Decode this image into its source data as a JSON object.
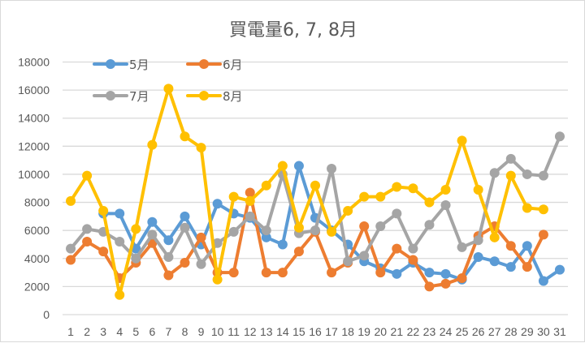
{
  "chart_data": {
    "type": "line",
    "title": "買電量6, 7, 8月",
    "xlabel": "",
    "ylabel": "",
    "ylim": [
      0,
      18000
    ],
    "yticks": [
      0,
      2000,
      4000,
      6000,
      8000,
      10000,
      12000,
      14000,
      16000,
      18000
    ],
    "grid": true,
    "legend_position": "top-left (inside plot)",
    "categories": [
      "1",
      "2",
      "3",
      "4",
      "5",
      "6",
      "7",
      "8",
      "9",
      "10",
      "11",
      "12",
      "13",
      "14",
      "15",
      "16",
      "17",
      "18",
      "19",
      "20",
      "21",
      "22",
      "23",
      "24",
      "25",
      "26",
      "27",
      "28",
      "29",
      "30",
      "31"
    ],
    "series": [
      {
        "name": "5月",
        "color": "#5B9BD5",
        "values": [
          null,
          null,
          7200,
          7200,
          4700,
          6600,
          5300,
          7000,
          5000,
          7900,
          7200,
          6900,
          5500,
          5000,
          10600,
          6900,
          6000,
          5000,
          3800,
          3300,
          2900,
          3700,
          3000,
          2900,
          2500,
          4100,
          3800,
          3400,
          4900,
          2400,
          3200
        ]
      },
      {
        "name": "6月",
        "color": "#ED7D31",
        "values": [
          3900,
          5200,
          4500,
          2600,
          3700,
          5100,
          2800,
          3700,
          5500,
          3000,
          3000,
          8700,
          3000,
          3000,
          4500,
          5900,
          3000,
          3700,
          6300,
          3000,
          4700,
          3900,
          2000,
          2200,
          2600,
          5600,
          6300,
          4900,
          3400,
          5700,
          null
        ]
      },
      {
        "name": "7月",
        "color": "#A5A5A5",
        "values": [
          4700,
          6100,
          5900,
          5200,
          4000,
          5700,
          4100,
          6200,
          3600,
          5100,
          5900,
          7000,
          6000,
          10000,
          5800,
          6000,
          10400,
          3800,
          4200,
          6300,
          7200,
          4700,
          6400,
          7800,
          4800,
          5300,
          10100,
          11100,
          10000,
          9900,
          12700
        ]
      },
      {
        "name": "8月",
        "color": "#FFC000",
        "values": [
          8100,
          9900,
          7400,
          1400,
          6100,
          12100,
          16100,
          12700,
          11900,
          2500,
          8400,
          8100,
          9200,
          10600,
          6200,
          9200,
          5900,
          7400,
          8400,
          8400,
          9100,
          9000,
          8000,
          8900,
          12400,
          8900,
          5500,
          9900,
          7600,
          7500,
          null
        ]
      }
    ]
  }
}
